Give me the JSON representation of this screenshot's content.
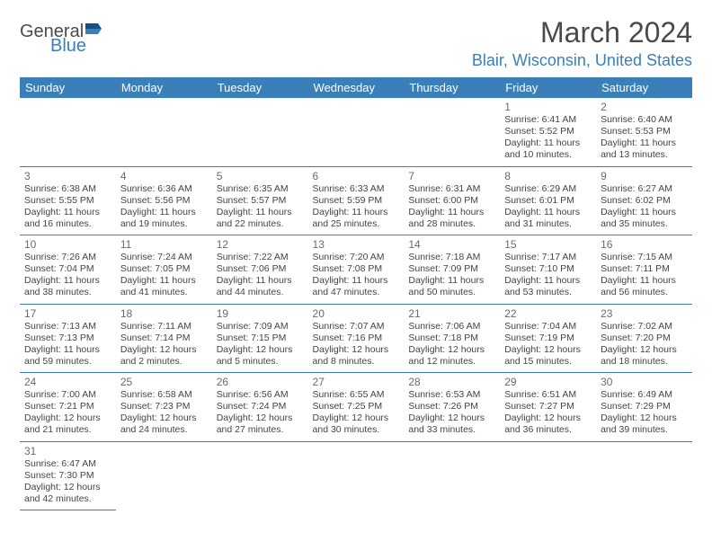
{
  "logo": {
    "part1": "General",
    "part2": "Blue"
  },
  "title": "March 2024",
  "location": "Blair, Wisconsin, United States",
  "colors": {
    "accent": "#3b7fb8",
    "text_dark": "#4a4a4a",
    "body": "#444444",
    "bg": "#ffffff"
  },
  "dayHeaders": [
    "Sunday",
    "Monday",
    "Tuesday",
    "Wednesday",
    "Thursday",
    "Friday",
    "Saturday"
  ],
  "weeks": [
    [
      null,
      null,
      null,
      null,
      null,
      {
        "n": "1",
        "sr": "Sunrise: 6:41 AM",
        "ss": "Sunset: 5:52 PM",
        "d1": "Daylight: 11 hours",
        "d2": "and 10 minutes."
      },
      {
        "n": "2",
        "sr": "Sunrise: 6:40 AM",
        "ss": "Sunset: 5:53 PM",
        "d1": "Daylight: 11 hours",
        "d2": "and 13 minutes."
      }
    ],
    [
      {
        "n": "3",
        "sr": "Sunrise: 6:38 AM",
        "ss": "Sunset: 5:55 PM",
        "d1": "Daylight: 11 hours",
        "d2": "and 16 minutes."
      },
      {
        "n": "4",
        "sr": "Sunrise: 6:36 AM",
        "ss": "Sunset: 5:56 PM",
        "d1": "Daylight: 11 hours",
        "d2": "and 19 minutes."
      },
      {
        "n": "5",
        "sr": "Sunrise: 6:35 AM",
        "ss": "Sunset: 5:57 PM",
        "d1": "Daylight: 11 hours",
        "d2": "and 22 minutes."
      },
      {
        "n": "6",
        "sr": "Sunrise: 6:33 AM",
        "ss": "Sunset: 5:59 PM",
        "d1": "Daylight: 11 hours",
        "d2": "and 25 minutes."
      },
      {
        "n": "7",
        "sr": "Sunrise: 6:31 AM",
        "ss": "Sunset: 6:00 PM",
        "d1": "Daylight: 11 hours",
        "d2": "and 28 minutes."
      },
      {
        "n": "8",
        "sr": "Sunrise: 6:29 AM",
        "ss": "Sunset: 6:01 PM",
        "d1": "Daylight: 11 hours",
        "d2": "and 31 minutes."
      },
      {
        "n": "9",
        "sr": "Sunrise: 6:27 AM",
        "ss": "Sunset: 6:02 PM",
        "d1": "Daylight: 11 hours",
        "d2": "and 35 minutes."
      }
    ],
    [
      {
        "n": "10",
        "sr": "Sunrise: 7:26 AM",
        "ss": "Sunset: 7:04 PM",
        "d1": "Daylight: 11 hours",
        "d2": "and 38 minutes."
      },
      {
        "n": "11",
        "sr": "Sunrise: 7:24 AM",
        "ss": "Sunset: 7:05 PM",
        "d1": "Daylight: 11 hours",
        "d2": "and 41 minutes."
      },
      {
        "n": "12",
        "sr": "Sunrise: 7:22 AM",
        "ss": "Sunset: 7:06 PM",
        "d1": "Daylight: 11 hours",
        "d2": "and 44 minutes."
      },
      {
        "n": "13",
        "sr": "Sunrise: 7:20 AM",
        "ss": "Sunset: 7:08 PM",
        "d1": "Daylight: 11 hours",
        "d2": "and 47 minutes."
      },
      {
        "n": "14",
        "sr": "Sunrise: 7:18 AM",
        "ss": "Sunset: 7:09 PM",
        "d1": "Daylight: 11 hours",
        "d2": "and 50 minutes."
      },
      {
        "n": "15",
        "sr": "Sunrise: 7:17 AM",
        "ss": "Sunset: 7:10 PM",
        "d1": "Daylight: 11 hours",
        "d2": "and 53 minutes."
      },
      {
        "n": "16",
        "sr": "Sunrise: 7:15 AM",
        "ss": "Sunset: 7:11 PM",
        "d1": "Daylight: 11 hours",
        "d2": "and 56 minutes."
      }
    ],
    [
      {
        "n": "17",
        "sr": "Sunrise: 7:13 AM",
        "ss": "Sunset: 7:13 PM",
        "d1": "Daylight: 11 hours",
        "d2": "and 59 minutes."
      },
      {
        "n": "18",
        "sr": "Sunrise: 7:11 AM",
        "ss": "Sunset: 7:14 PM",
        "d1": "Daylight: 12 hours",
        "d2": "and 2 minutes."
      },
      {
        "n": "19",
        "sr": "Sunrise: 7:09 AM",
        "ss": "Sunset: 7:15 PM",
        "d1": "Daylight: 12 hours",
        "d2": "and 5 minutes."
      },
      {
        "n": "20",
        "sr": "Sunrise: 7:07 AM",
        "ss": "Sunset: 7:16 PM",
        "d1": "Daylight: 12 hours",
        "d2": "and 8 minutes."
      },
      {
        "n": "21",
        "sr": "Sunrise: 7:06 AM",
        "ss": "Sunset: 7:18 PM",
        "d1": "Daylight: 12 hours",
        "d2": "and 12 minutes."
      },
      {
        "n": "22",
        "sr": "Sunrise: 7:04 AM",
        "ss": "Sunset: 7:19 PM",
        "d1": "Daylight: 12 hours",
        "d2": "and 15 minutes."
      },
      {
        "n": "23",
        "sr": "Sunrise: 7:02 AM",
        "ss": "Sunset: 7:20 PM",
        "d1": "Daylight: 12 hours",
        "d2": "and 18 minutes."
      }
    ],
    [
      {
        "n": "24",
        "sr": "Sunrise: 7:00 AM",
        "ss": "Sunset: 7:21 PM",
        "d1": "Daylight: 12 hours",
        "d2": "and 21 minutes."
      },
      {
        "n": "25",
        "sr": "Sunrise: 6:58 AM",
        "ss": "Sunset: 7:23 PM",
        "d1": "Daylight: 12 hours",
        "d2": "and 24 minutes."
      },
      {
        "n": "26",
        "sr": "Sunrise: 6:56 AM",
        "ss": "Sunset: 7:24 PM",
        "d1": "Daylight: 12 hours",
        "d2": "and 27 minutes."
      },
      {
        "n": "27",
        "sr": "Sunrise: 6:55 AM",
        "ss": "Sunset: 7:25 PM",
        "d1": "Daylight: 12 hours",
        "d2": "and 30 minutes."
      },
      {
        "n": "28",
        "sr": "Sunrise: 6:53 AM",
        "ss": "Sunset: 7:26 PM",
        "d1": "Daylight: 12 hours",
        "d2": "and 33 minutes."
      },
      {
        "n": "29",
        "sr": "Sunrise: 6:51 AM",
        "ss": "Sunset: 7:27 PM",
        "d1": "Daylight: 12 hours",
        "d2": "and 36 minutes."
      },
      {
        "n": "30",
        "sr": "Sunrise: 6:49 AM",
        "ss": "Sunset: 7:29 PM",
        "d1": "Daylight: 12 hours",
        "d2": "and 39 minutes."
      }
    ],
    [
      {
        "n": "31",
        "sr": "Sunrise: 6:47 AM",
        "ss": "Sunset: 7:30 PM",
        "d1": "Daylight: 12 hours",
        "d2": "and 42 minutes."
      },
      null,
      null,
      null,
      null,
      null,
      null
    ]
  ]
}
